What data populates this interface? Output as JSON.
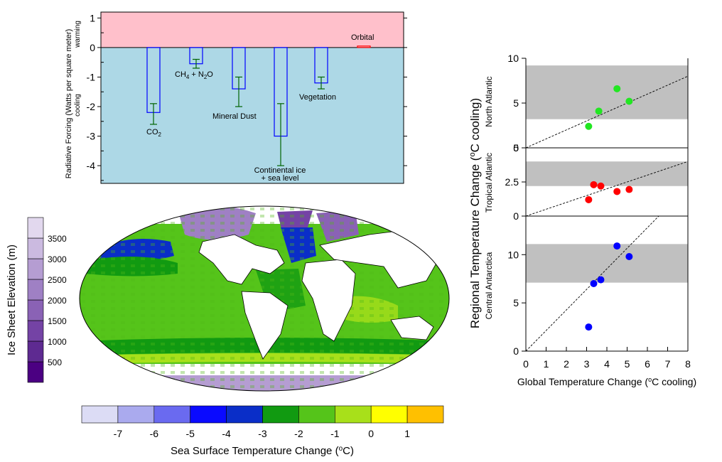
{
  "chart_data": [
    {
      "type": "bar",
      "ylabel": "Radiative Forcing (Watts per square meter)",
      "ylabel_warming": "warming",
      "ylabel_cooling": "cooling",
      "ylim": [
        -4.6,
        1.2
      ],
      "yticks": [
        1,
        0,
        -1,
        -2,
        -3,
        -4
      ],
      "ytick_labels": [
        "1",
        "0",
        "-1",
        "-2",
        "-3",
        "-4"
      ],
      "warming_color": "#ffc0cb",
      "cooling_color": "#add8e6",
      "bar_color": "#0000ff",
      "error_color": "#006400",
      "bars": [
        {
          "label_main": "CO",
          "label_sub": "2",
          "label_rest": "",
          "label_line2": "",
          "value": -2.2,
          "err_low": -2.6,
          "err_high": -1.9
        },
        {
          "label_main": "CH",
          "label_sub": "4",
          "label_rest": " + N",
          "label_sub2": "2",
          "label_tail": "O",
          "label_line2": "",
          "value": -0.55,
          "err_low": -0.7,
          "err_high": -0.4
        },
        {
          "label_main": "Mineral Dust",
          "label_line2": "",
          "value": -1.4,
          "err_low": -2.0,
          "err_high": -1.0
        },
        {
          "label_main": "Continental ice",
          "label_line2": "+ sea level",
          "value": -3.0,
          "err_low": -4.0,
          "err_high": -1.9
        },
        {
          "label_main": "Vegetation",
          "label_line2": "",
          "value": -1.2,
          "err_low": -1.4,
          "err_high": -1.0
        },
        {
          "label_main": "Orbital",
          "label_line2": "",
          "value": 0.05,
          "bar_color": "#ff0000"
        }
      ]
    },
    {
      "type": "heatmap",
      "ice_scale": {
        "label": "Ice Sheet Elevation (m)",
        "tick_labels": [
          "500",
          "1000",
          "1500",
          "2000",
          "2500",
          "3000",
          "3500"
        ],
        "colors": [
          "#4b0082",
          "#5e2a91",
          "#7443a5",
          "#8a62b5",
          "#9f80c4",
          "#b59dd2",
          "#cbbae0",
          "#e2d8ee"
        ]
      },
      "sst_scale": {
        "label_prefix": "Sea Surface Temperature Change (",
        "label_unit_sup": "o",
        "label_suffix": "C)",
        "tick_labels": [
          "-7",
          "-6",
          "-5",
          "-4",
          "-3",
          "-2",
          "-1",
          "0",
          "1"
        ],
        "colors": [
          "#dcdcf5",
          "#aaaaee",
          "#6a6af0",
          "#0a0aff",
          "#0a2ec8",
          "#119a11",
          "#55c41a",
          "#a8e01a",
          "#ffff00",
          "#ffc000"
        ]
      }
    },
    {
      "type": "scatter",
      "ylabel_prefix": "Regional Temperature Change (",
      "ylabel_sup": "o",
      "ylabel_suffix": "C cooling)",
      "xlabel_prefix": "Global Temperature Change (",
      "xlabel_sup": "o",
      "xlabel_suffix": "C cooling)",
      "xlim": [
        0,
        8
      ],
      "xticks": [
        0,
        1,
        2,
        3,
        4,
        5,
        6,
        7,
        8
      ],
      "xtick_labels": [
        "0",
        "1",
        "2",
        "3",
        "4",
        "5",
        "6",
        "7",
        "8"
      ],
      "band_color": "#c0c0c0",
      "panels": [
        {
          "name": "North Atlantic",
          "color": "#22e622",
          "ylim": [
            0,
            10
          ],
          "yticks": [
            0,
            5,
            10
          ],
          "ytick_labels": [
            "0",
            "5",
            "10"
          ],
          "band": [
            3.2,
            9.2
          ],
          "line": [
            [
              0,
              0
            ],
            [
              8,
              8
            ]
          ],
          "points": [
            [
              3.1,
              2.4
            ],
            [
              3.6,
              4.1
            ],
            [
              4.5,
              6.6
            ],
            [
              5.1,
              5.2
            ]
          ]
        },
        {
          "name": "Tropical Atlantic",
          "color": "#ff0000",
          "ylim": [
            0,
            5
          ],
          "yticks": [
            0,
            2.5,
            5
          ],
          "ytick_labels": [
            "0",
            "2.5",
            "5"
          ],
          "band": [
            2.2,
            4.0
          ],
          "line": [
            [
              0,
              0
            ],
            [
              8,
              4
            ]
          ],
          "points": [
            [
              3.1,
              1.2
            ],
            [
              3.35,
              2.3
            ],
            [
              3.7,
              2.2
            ],
            [
              4.5,
              1.8
            ],
            [
              5.1,
              1.95
            ]
          ]
        },
        {
          "name": "Central Antarctica",
          "color": "#0000ff",
          "ylim": [
            0,
            14
          ],
          "yticks": [
            0,
            5,
            10
          ],
          "ytick_labels": [
            "0",
            "5",
            "10"
          ],
          "band": [
            7.1,
            11.1
          ],
          "line": [
            [
              0,
              0
            ],
            [
              7.5,
              16
            ]
          ],
          "points": [
            [
              3.1,
              2.5
            ],
            [
              3.35,
              7.0
            ],
            [
              3.7,
              7.4
            ],
            [
              4.5,
              10.9
            ],
            [
              5.1,
              9.8
            ]
          ]
        }
      ]
    }
  ]
}
